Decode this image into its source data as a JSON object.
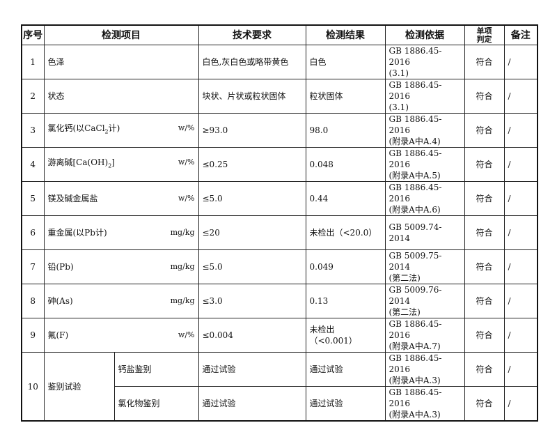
{
  "headers": {
    "no": "序号",
    "item": "检测项目",
    "requirement": "技术要求",
    "result": "检测结果",
    "method": "检测依据",
    "verdict_line1": "单项",
    "verdict_line2": "判定",
    "remark": "备注"
  },
  "rows": [
    {
      "no": "1",
      "item": "色泽",
      "unit": "",
      "requirement": "白色,灰白色或略带黄色",
      "result": "白色",
      "method_line1": "GB 1886.45-2016",
      "method_line2": "(3.1)",
      "verdict": "符合",
      "remark": "/"
    },
    {
      "no": "2",
      "item": "状态",
      "unit": "",
      "requirement": "块状、片状或粒状固体",
      "result": "粒状固体",
      "method_line1": "GB 1886.45-2016",
      "method_line2": "(3.1)",
      "verdict": "符合",
      "remark": "/"
    },
    {
      "no": "3",
      "item_pre": "氯化钙(以CaCl",
      "item_sub": "2",
      "item_post": "计)",
      "unit": "w/%",
      "requirement": "≥93.0",
      "result": "98.0",
      "method_line1": "GB 1886.45-2016",
      "method_line2": "(附录A中A.4)",
      "verdict": "符合",
      "remark": "/"
    },
    {
      "no": "4",
      "item_pre": "游离碱[Ca(OH)",
      "item_sub": "2",
      "item_post": "]",
      "unit": "w/%",
      "requirement": "≤0.25",
      "result": "0.048",
      "method_line1": "GB 1886.45-2016",
      "method_line2": "(附录A中A.5)",
      "verdict": "符合",
      "remark": "/"
    },
    {
      "no": "5",
      "item": "镁及碱金属盐",
      "unit": "w/%",
      "requirement": "≤5.0",
      "result": "0.44",
      "method_line1": "GB 1886.45-2016",
      "method_line2": "(附录A中A.6)",
      "verdict": "符合",
      "remark": "/"
    },
    {
      "no": "6",
      "item": "重金属(以Pb计)",
      "unit": "mg/kg",
      "requirement": "≤20",
      "result": "未检出（<20.0）",
      "method_line1": "GB 5009.74-2014",
      "method_line2": "",
      "verdict": "符合",
      "remark": "/"
    },
    {
      "no": "7",
      "item": "铅(Pb)",
      "unit": "mg/kg",
      "requirement": "≤5.0",
      "result": "0.049",
      "method_line1": "GB 5009.75-2014",
      "method_line2": "(第二法)",
      "verdict": "符合",
      "remark": "/"
    },
    {
      "no": "8",
      "item": "砷(As)",
      "unit": "mg/kg",
      "requirement": "≤3.0",
      "result": "0.13",
      "method_line1": "GB 5009.76-2014",
      "method_line2": "(第二法)",
      "verdict": "符合",
      "remark": "/"
    },
    {
      "no": "9",
      "item": "氟(F)",
      "unit": "w/%",
      "requirement": "≤0.004",
      "result_line1": "未检出",
      "result_line2": "（<0.001）",
      "method_line1": "GB 1886.45-2016",
      "method_line2": "(附录A中A.7)",
      "verdict": "符合",
      "remark": "/"
    }
  ],
  "row10": {
    "no": "10",
    "item": "鉴别试验",
    "subs": [
      {
        "item": "钙盐鉴别",
        "requirement": "通过试验",
        "result": "通过试验",
        "method_line1": "GB 1886.45-2016",
        "method_line2": "(附录A中A.3)",
        "verdict": "符合",
        "remark": "/"
      },
      {
        "item": "氯化物鉴别",
        "requirement": "通过试验",
        "result": "通过试验",
        "method_line1": "GB 1886.45-2016",
        "method_line2": "(附录A中A.3)",
        "verdict": "符合",
        "remark": "/"
      }
    ]
  }
}
